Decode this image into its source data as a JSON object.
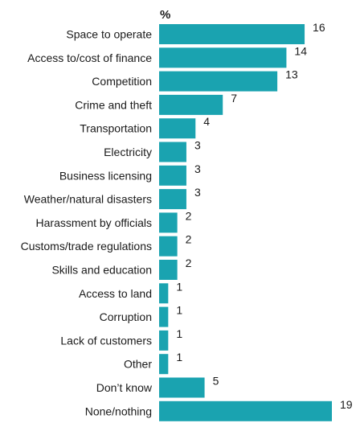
{
  "chart_data": {
    "type": "bar",
    "orientation": "horizontal",
    "unit_label": "%",
    "categories": [
      "Space to operate",
      "Access to/cost of finance",
      "Competition",
      "Crime and theft",
      "Transportation",
      "Electricity",
      "Business licensing",
      "Weather/natural disasters",
      "Harassment by officials",
      "Customs/trade regulations",
      "Skills and education",
      "Access to land",
      "Corruption",
      "Lack of customers",
      "Other",
      "Don’t know",
      "None/nothing"
    ],
    "values": [
      16,
      14,
      13,
      7,
      4,
      3,
      3,
      3,
      2,
      2,
      2,
      1,
      1,
      1,
      1,
      5,
      19
    ],
    "xlim": [
      0,
      19
    ],
    "bar_color": "#1aa3b0",
    "grid": false,
    "legend": "none"
  }
}
